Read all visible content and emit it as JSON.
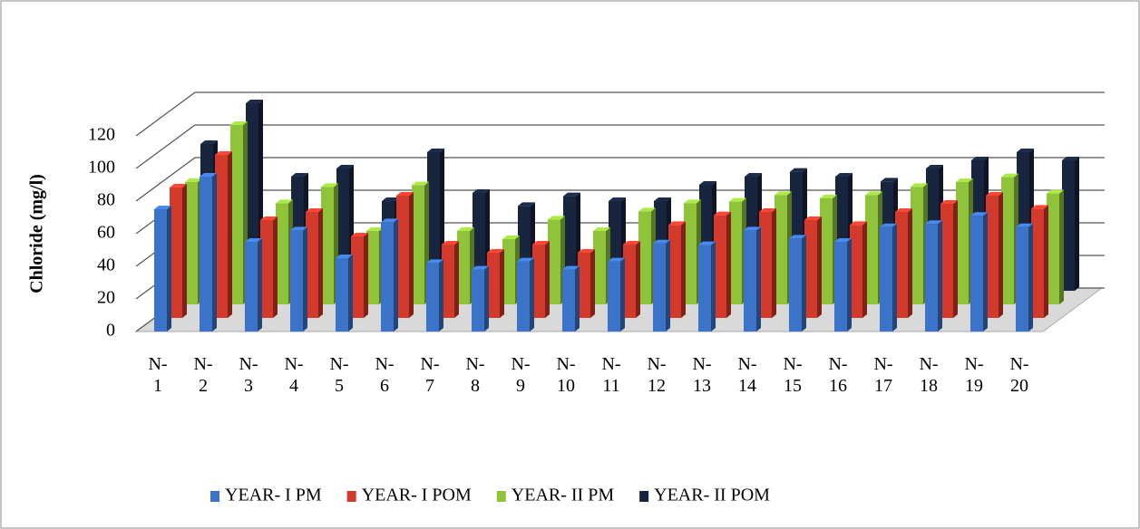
{
  "chart_data": {
    "type": "bar3d",
    "y_label": "Chloride (mg/l)",
    "categories": [
      "N-1",
      "N-2",
      "N-3",
      "N-4",
      "N-5",
      "N-6",
      "N-7",
      "N-8",
      "N-9",
      "N-10",
      "N-11",
      "N-12",
      "N-13",
      "N-14",
      "N-15",
      "N-16",
      "N-17",
      "N-18",
      "N-19",
      "N-20"
    ],
    "series": [
      {
        "name": "YEAR- I PM",
        "color": "#3b73c8",
        "values": [
          75,
          95,
          55,
          62,
          45,
          67,
          42,
          38,
          43,
          38,
          43,
          54,
          53,
          62,
          57,
          55,
          64,
          66,
          71,
          64
        ]
      },
      {
        "name": "YEAR- I POM",
        "color": "#d43a2c",
        "values": [
          80,
          100,
          60,
          65,
          50,
          75,
          45,
          40,
          45,
          40,
          45,
          57,
          63,
          65,
          60,
          57,
          65,
          70,
          75,
          67
        ]
      },
      {
        "name": "YEAR- II PM",
        "color": "#8fc43a",
        "values": [
          75,
          110,
          62,
          72,
          45,
          73,
          45,
          40,
          52,
          45,
          57,
          62,
          63,
          67,
          65,
          67,
          72,
          75,
          78,
          68
        ]
      },
      {
        "name": "YEAR- II POM",
        "color": "#17253f",
        "values": [
          90,
          115,
          70,
          75,
          55,
          85,
          60,
          52,
          58,
          55,
          55,
          65,
          70,
          73,
          70,
          67,
          75,
          80,
          85,
          80
        ]
      }
    ],
    "ylim": [
      0,
      120
    ],
    "yticks": [
      0,
      20,
      40,
      60,
      80,
      100,
      120
    ],
    "grid": true
  }
}
